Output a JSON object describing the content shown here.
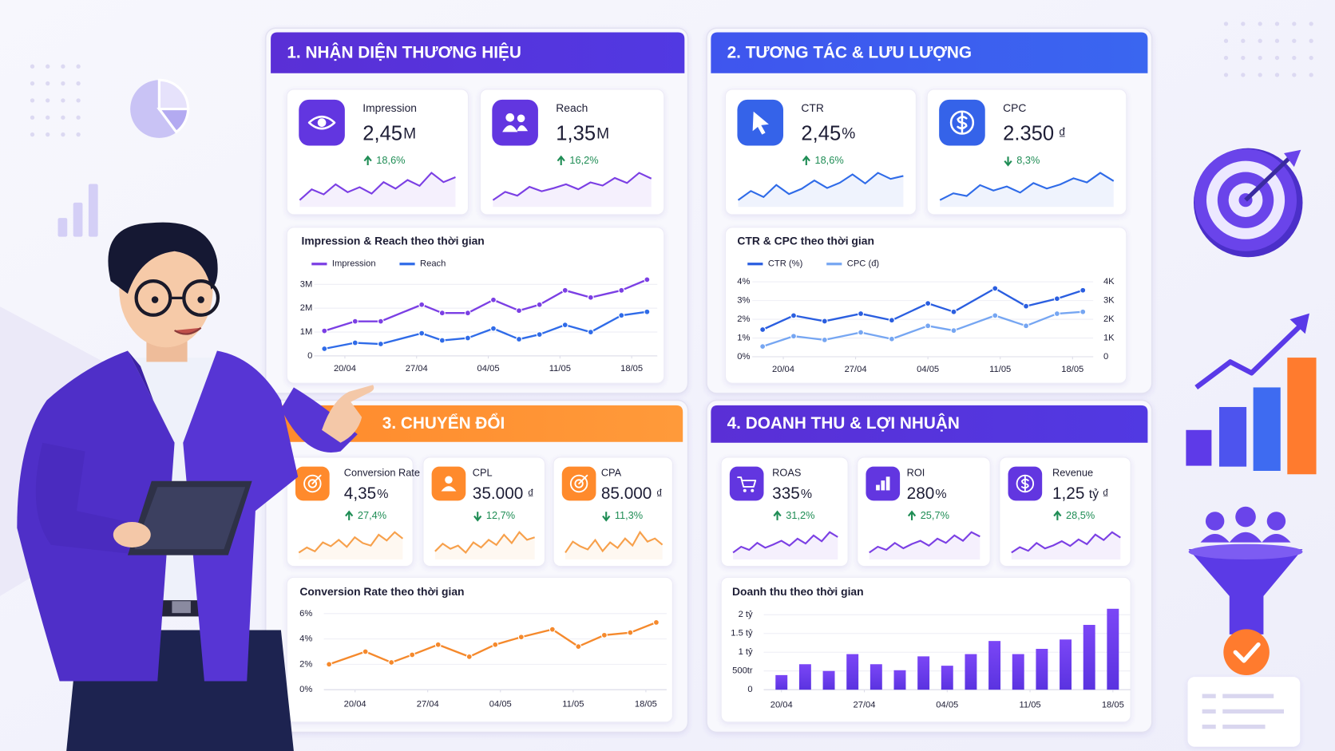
{
  "panels": [
    {
      "title": "1. NHẬN DIỆN THƯƠNG HIỆU",
      "kpis": [
        {
          "label": "Impression",
          "value": "2,45",
          "unit": "M",
          "change": "18,6%",
          "direction": "up",
          "trend": [
            3,
            4.5,
            3.8,
            5.2,
            4.1,
            4.8,
            3.9,
            5.5,
            4.6,
            5.8,
            5,
            6.8,
            5.5,
            6.2
          ]
        },
        {
          "label": "Reach",
          "value": "1,35",
          "unit": "M",
          "change": "16,2%",
          "direction": "up",
          "trend": [
            2.5,
            3.8,
            3.2,
            4.6,
            3.9,
            4.4,
            5,
            4.2,
            5.3,
            4.8,
            6,
            5.2,
            6.8,
            5.9
          ]
        }
      ],
      "chart": {
        "type": "line",
        "title": "Impression & Reach theo thời gian",
        "x": [
          -2,
          1,
          3.5,
          7.5,
          9.5,
          12,
          14.5,
          17,
          19,
          21.5,
          24,
          27,
          29.5
        ],
        "xlim": [
          -3,
          30.5
        ],
        "xticks": [
          {
            "value": 0,
            "label": "20/04"
          },
          {
            "value": 7,
            "label": "27/04"
          },
          {
            "value": 14,
            "label": "04/05"
          },
          {
            "value": 21,
            "label": "11/05"
          },
          {
            "value": 28,
            "label": "18/05"
          }
        ],
        "ylim": [
          0,
          3.2
        ],
        "yticks": [
          0,
          {
            "value": 1,
            "label": "1M"
          },
          {
            "value": 2,
            "label": "2M"
          },
          {
            "value": 3,
            "label": "3M"
          }
        ],
        "series": [
          {
            "name": "Impression",
            "color": "#7b3fe4",
            "values": [
              1.05,
              1.45,
              1.45,
              2.15,
              1.8,
              1.8,
              2.35,
              1.9,
              2.15,
              2.75,
              2.45,
              2.75,
              3.2
            ]
          },
          {
            "name": "Reach",
            "color": "#2f6be8",
            "values": [
              0.3,
              0.55,
              0.5,
              0.95,
              0.65,
              0.75,
              1.15,
              0.7,
              0.9,
              1.3,
              1.0,
              1.7,
              1.85
            ]
          }
        ]
      }
    },
    {
      "title": "2. TƯƠNG TÁC & LƯU LƯỢNG",
      "kpis": [
        {
          "label": "CTR",
          "value": "2,45",
          "unit": "%",
          "change": "18,6%",
          "direction": "up",
          "trend": [
            2.8,
            4,
            3.2,
            4.8,
            3.6,
            4.3,
            5.4,
            4.4,
            5.1,
            6.2,
            5,
            6.4,
            5.6,
            6
          ]
        },
        {
          "label": "CPC",
          "value": "2.350",
          "unit": "₫",
          "change": "8,3%",
          "direction": "down",
          "trend": [
            2,
            3,
            2.6,
            4.2,
            3.4,
            4,
            3.1,
            4.5,
            3.7,
            4.3,
            5.2,
            4.6,
            6,
            4.8
          ]
        }
      ],
      "chart": {
        "type": "line",
        "title": "CTR & CPC theo thời gian",
        "x": [
          -2,
          1,
          4,
          7.5,
          10.5,
          14,
          16.5,
          20.5,
          23.5,
          26.5,
          29
        ],
        "xlim": [
          -3,
          30
        ],
        "xticks": [
          {
            "value": 0,
            "label": "20/04"
          },
          {
            "value": 7,
            "label": "27/04"
          },
          {
            "value": 14,
            "label": "04/05"
          },
          {
            "value": 21,
            "label": "11/05"
          },
          {
            "value": 28,
            "label": "18/05"
          }
        ],
        "ylim": [
          0,
          4
        ],
        "yticks": [
          {
            "value": 0,
            "label": "0%"
          },
          {
            "value": 1,
            "label": "1%"
          },
          {
            "value": 2,
            "label": "2%"
          },
          {
            "value": 3,
            "label": "3%"
          },
          {
            "value": 4,
            "label": "4%"
          }
        ],
        "y2lim": [
          0,
          4000
        ],
        "y2ticks": [
          0,
          {
            "value": 1000,
            "label": "1K"
          },
          {
            "value": 2000,
            "label": "2K"
          },
          {
            "value": 3000,
            "label": "3K"
          },
          {
            "value": 4000,
            "label": "4K"
          }
        ],
        "series": [
          {
            "name": "CTR (%)",
            "color": "#2a5ee0",
            "values": [
              1.45,
              2.2,
              1.9,
              2.3,
              1.95,
              2.85,
              2.4,
              3.65,
              2.7,
              3.1,
              3.55
            ]
          },
          {
            "name": "CPC (đ)",
            "color": "#76a6f2",
            "axis": "y2",
            "values": [
              550,
              1100,
              900,
              1300,
              950,
              1650,
              1400,
              2200,
              1650,
              2300,
              2400
            ]
          }
        ]
      }
    },
    {
      "title": "3. CHUYỂN ĐỔI",
      "kpis": [
        {
          "label": "Conversion Rate",
          "value": "4,35",
          "unit": "%",
          "change": "27,4%",
          "direction": "up",
          "trend": [
            3,
            3.8,
            3.2,
            4.6,
            4,
            5,
            3.9,
            5.4,
            4.5,
            4.1,
            5.8,
            4.9,
            6.2,
            5.2
          ]
        },
        {
          "label": "CPL",
          "value": "35.000",
          "unit": "₫",
          "change": "12,7%",
          "direction": "down",
          "trend": [
            3.4,
            4.6,
            3.8,
            4.3,
            3.2,
            4.8,
            4,
            5.2,
            4.4,
            6,
            4.7,
            6.4,
            5.2,
            5.6
          ]
        },
        {
          "label": "CPA",
          "value": "85.000",
          "unit": "₫",
          "change": "11,3%",
          "direction": "down",
          "trend": [
            3.6,
            5,
            4.4,
            4,
            5.2,
            3.8,
            4.9,
            4.2,
            5.4,
            4.5,
            6.2,
            5,
            5.4,
            4.6
          ]
        }
      ],
      "chart": {
        "type": "line",
        "title": "Conversion Rate theo thời gian",
        "x": [
          -2.5,
          1,
          3.5,
          5.5,
          8,
          11,
          13.5,
          16,
          19,
          21.5,
          24,
          26.5,
          29
        ],
        "xlim": [
          -3,
          30
        ],
        "xticks": [
          {
            "value": 0,
            "label": "20/04"
          },
          {
            "value": 7,
            "label": "27/04"
          },
          {
            "value": 14,
            "label": "04/05"
          },
          {
            "value": 21,
            "label": "11/05"
          },
          {
            "value": 28,
            "label": "18/05"
          }
        ],
        "ylim": [
          0,
          6
        ],
        "yticks": [
          {
            "value": 0,
            "label": "0%"
          },
          {
            "value": 2,
            "label": "2%"
          },
          {
            "value": 4,
            "label": "4%"
          },
          {
            "value": 6,
            "label": "6%"
          }
        ],
        "color": "#f5892c",
        "values": [
          2.0,
          3.0,
          2.15,
          2.75,
          3.55,
          2.6,
          3.55,
          4.15,
          4.75,
          3.4,
          4.3,
          4.5,
          5.3
        ]
      }
    },
    {
      "title": "4. DOANH THU & LỢI NHUẬN",
      "kpis": [
        {
          "label": "ROAS",
          "value": "335",
          "unit": "%",
          "change": "31,2%",
          "direction": "up",
          "trend": [
            3,
            4.1,
            3.5,
            4.8,
            3.9,
            4.5,
            5.2,
            4.3,
            5.6,
            4.7,
            6.2,
            5.1,
            6.8,
            5.9
          ]
        },
        {
          "label": "ROI",
          "value": "280",
          "unit": "%",
          "change": "25,7%",
          "direction": "up",
          "trend": [
            2.8,
            3.9,
            3.3,
            4.6,
            3.6,
            4.4,
            5,
            4.1,
            5.4,
            4.6,
            6,
            5,
            6.6,
            5.8
          ]
        },
        {
          "label": "Revenue",
          "value": "1,25",
          "unit": "tỷ ₫",
          "change": "28,5%",
          "direction": "up",
          "trend": [
            3.1,
            4,
            3.4,
            4.7,
            3.8,
            4.3,
            5,
            4.2,
            5.3,
            4.5,
            6.1,
            5.2,
            6.5,
            5.6
          ]
        }
      ],
      "chart": {
        "type": "bar",
        "title": "Doanh thu theo thời gian",
        "x": [
          0,
          2,
          4,
          6,
          8,
          10,
          12,
          14,
          16,
          18,
          20,
          22,
          24,
          26,
          28
        ],
        "xlim": [
          -1.5,
          29.5
        ],
        "xticks": [
          {
            "value": 0,
            "label": "20/04"
          },
          {
            "value": 7,
            "label": "27/04"
          },
          {
            "value": 14,
            "label": "04/05"
          },
          {
            "value": 21,
            "label": "11/05"
          },
          {
            "value": 28,
            "label": "18/05"
          }
        ],
        "ylim": [
          0,
          2.2
        ],
        "yticks": [
          0,
          {
            "value": 0.5,
            "label": "500tr"
          },
          {
            "value": 1,
            "label": "1 tỷ"
          },
          {
            "value": 1.5,
            "label": "1.5 tỷ"
          },
          {
            "value": 2,
            "label": "2 tỷ"
          }
        ],
        "color": "#6b3ef0",
        "values": [
          0.39,
          0.68,
          0.5,
          0.95,
          0.68,
          0.52,
          0.89,
          0.64,
          0.95,
          1.3,
          0.95,
          1.09,
          1.34,
          1.73,
          2.16
        ]
      }
    }
  ]
}
